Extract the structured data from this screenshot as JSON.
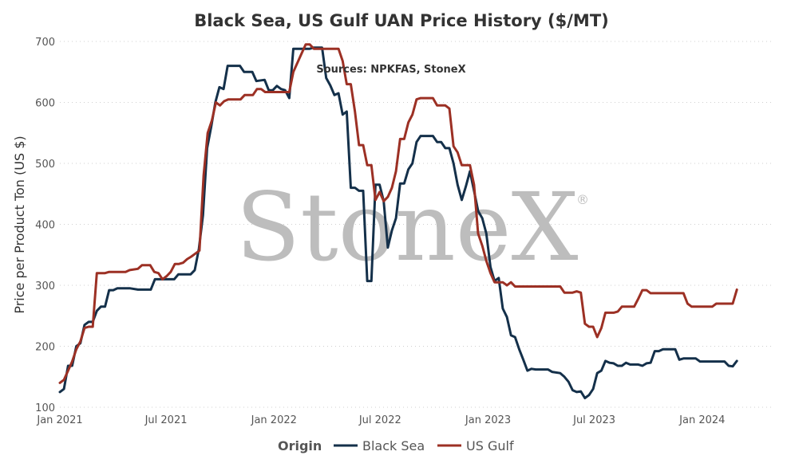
{
  "chart_data": {
    "type": "line",
    "title": "Black Sea, US Gulf UAN Price History ($/MT)",
    "subtitle": "Sources: NPKFAS, StoneX",
    "watermark": "StoneX",
    "watermark_symbol": "®",
    "xlabel": "",
    "ylabel": "Price per Product Ton (US $)",
    "ylim": [
      100,
      700
    ],
    "yticks": [
      100,
      200,
      300,
      400,
      500,
      600,
      700
    ],
    "xlim": [
      "2021-01-01",
      "2024-04-30"
    ],
    "xticks": [
      {
        "date": "2021-01-01",
        "label": "Jan 2021"
      },
      {
        "date": "2021-07-01",
        "label": "Jul 2021"
      },
      {
        "date": "2022-01-01",
        "label": "Jan 2022"
      },
      {
        "date": "2022-07-01",
        "label": "Jul 2022"
      },
      {
        "date": "2023-01-01",
        "label": "Jan 2023"
      },
      {
        "date": "2023-07-01",
        "label": "Jul 2023"
      },
      {
        "date": "2024-01-01",
        "label": "Jan 2024"
      }
    ],
    "grid": true,
    "legend": {
      "title": "Origin",
      "position": "bottom"
    },
    "series": [
      {
        "name": "Black Sea",
        "color": "#14304a",
        "points": [
          [
            "2021-01-01",
            125
          ],
          [
            "2021-01-08",
            130
          ],
          [
            "2021-01-15",
            168
          ],
          [
            "2021-01-22",
            168
          ],
          [
            "2021-01-29",
            200
          ],
          [
            "2021-02-05",
            205
          ],
          [
            "2021-02-12",
            235
          ],
          [
            "2021-02-19",
            240
          ],
          [
            "2021-02-26",
            240
          ],
          [
            "2021-03-05",
            258
          ],
          [
            "2021-03-12",
            265
          ],
          [
            "2021-03-19",
            265
          ],
          [
            "2021-03-26",
            292
          ],
          [
            "2021-04-02",
            292
          ],
          [
            "2021-04-09",
            295
          ],
          [
            "2021-05-01",
            295
          ],
          [
            "2021-05-14",
            293
          ],
          [
            "2021-06-05",
            293
          ],
          [
            "2021-06-12",
            310
          ],
          [
            "2021-07-15",
            310
          ],
          [
            "2021-07-22",
            318
          ],
          [
            "2021-08-12",
            318
          ],
          [
            "2021-08-19",
            325
          ],
          [
            "2021-08-26",
            360
          ],
          [
            "2021-09-02",
            415
          ],
          [
            "2021-09-09",
            525
          ],
          [
            "2021-09-16",
            560
          ],
          [
            "2021-09-23",
            600
          ],
          [
            "2021-09-30",
            625
          ],
          [
            "2021-10-07",
            622
          ],
          [
            "2021-10-14",
            660
          ],
          [
            "2021-11-04",
            660
          ],
          [
            "2021-11-11",
            650
          ],
          [
            "2021-11-25",
            650
          ],
          [
            "2021-12-02",
            635
          ],
          [
            "2021-12-16",
            637
          ],
          [
            "2021-12-23",
            620
          ],
          [
            "2021-12-30",
            620
          ],
          [
            "2022-01-06",
            627
          ],
          [
            "2022-01-13",
            622
          ],
          [
            "2022-01-20",
            620
          ],
          [
            "2022-01-27",
            607
          ],
          [
            "2022-02-03",
            688
          ],
          [
            "2022-03-03",
            688
          ],
          [
            "2022-03-10",
            690
          ],
          [
            "2022-03-24",
            690
          ],
          [
            "2022-03-31",
            640
          ],
          [
            "2022-04-07",
            628
          ],
          [
            "2022-04-14",
            612
          ],
          [
            "2022-04-21",
            615
          ],
          [
            "2022-04-28",
            580
          ],
          [
            "2022-05-05",
            585
          ],
          [
            "2022-05-12",
            460
          ],
          [
            "2022-05-19",
            460
          ],
          [
            "2022-05-26",
            455
          ],
          [
            "2022-06-02",
            455
          ],
          [
            "2022-06-09",
            307
          ],
          [
            "2022-06-16",
            307
          ],
          [
            "2022-06-23",
            465
          ],
          [
            "2022-06-30",
            465
          ],
          [
            "2022-07-07",
            438
          ],
          [
            "2022-07-14",
            362
          ],
          [
            "2022-07-21",
            390
          ],
          [
            "2022-07-28",
            410
          ],
          [
            "2022-08-04",
            467
          ],
          [
            "2022-08-11",
            467
          ],
          [
            "2022-08-18",
            490
          ],
          [
            "2022-08-25",
            500
          ],
          [
            "2022-09-01",
            535
          ],
          [
            "2022-09-08",
            545
          ],
          [
            "2022-09-29",
            545
          ],
          [
            "2022-10-06",
            535
          ],
          [
            "2022-10-13",
            535
          ],
          [
            "2022-10-20",
            525
          ],
          [
            "2022-10-27",
            525
          ],
          [
            "2022-11-03",
            500
          ],
          [
            "2022-11-10",
            465
          ],
          [
            "2022-11-17",
            440
          ],
          [
            "2022-11-24",
            462
          ],
          [
            "2022-12-01",
            487
          ],
          [
            "2022-12-08",
            455
          ],
          [
            "2022-12-15",
            422
          ],
          [
            "2022-12-22",
            410
          ],
          [
            "2022-12-29",
            385
          ],
          [
            "2023-01-05",
            330
          ],
          [
            "2023-01-12",
            307
          ],
          [
            "2023-01-19",
            312
          ],
          [
            "2023-01-26",
            262
          ],
          [
            "2023-02-02",
            248
          ],
          [
            "2023-02-09",
            218
          ],
          [
            "2023-02-16",
            215
          ],
          [
            "2023-02-23",
            195
          ],
          [
            "2023-03-02",
            178
          ],
          [
            "2023-03-09",
            160
          ],
          [
            "2023-03-16",
            163
          ],
          [
            "2023-03-23",
            162
          ],
          [
            "2023-04-13",
            162
          ],
          [
            "2023-04-20",
            158
          ],
          [
            "2023-05-04",
            156
          ],
          [
            "2023-05-11",
            150
          ],
          [
            "2023-05-18",
            142
          ],
          [
            "2023-05-25",
            128
          ],
          [
            "2023-06-01",
            125
          ],
          [
            "2023-06-08",
            126
          ],
          [
            "2023-06-15",
            115
          ],
          [
            "2023-06-22",
            120
          ],
          [
            "2023-06-29",
            130
          ],
          [
            "2023-07-06",
            156
          ],
          [
            "2023-07-13",
            160
          ],
          [
            "2023-07-20",
            176
          ],
          [
            "2023-07-27",
            173
          ],
          [
            "2023-08-03",
            172
          ],
          [
            "2023-08-10",
            168
          ],
          [
            "2023-08-17",
            168
          ],
          [
            "2023-08-24",
            173
          ],
          [
            "2023-08-31",
            170
          ],
          [
            "2023-09-07",
            170
          ],
          [
            "2023-09-14",
            170
          ],
          [
            "2023-09-21",
            168
          ],
          [
            "2023-09-28",
            172
          ],
          [
            "2023-10-05",
            173
          ],
          [
            "2023-10-12",
            192
          ],
          [
            "2023-10-19",
            192
          ],
          [
            "2023-10-26",
            195
          ],
          [
            "2023-11-16",
            195
          ],
          [
            "2023-11-23",
            178
          ],
          [
            "2023-11-30",
            180
          ],
          [
            "2023-12-21",
            180
          ],
          [
            "2023-12-28",
            175
          ],
          [
            "2024-02-08",
            175
          ],
          [
            "2024-02-15",
            168
          ],
          [
            "2024-02-22",
            167
          ],
          [
            "2024-02-29",
            176
          ]
        ]
      },
      {
        "name": "US Gulf",
        "color": "#9c3024",
        "points": [
          [
            "2021-01-01",
            140
          ],
          [
            "2021-01-08",
            145
          ],
          [
            "2021-01-15",
            160
          ],
          [
            "2021-01-22",
            175
          ],
          [
            "2021-01-29",
            195
          ],
          [
            "2021-02-05",
            208
          ],
          [
            "2021-02-12",
            230
          ],
          [
            "2021-02-19",
            232
          ],
          [
            "2021-02-26",
            232
          ],
          [
            "2021-03-05",
            320
          ],
          [
            "2021-03-12",
            320
          ],
          [
            "2021-03-19",
            320
          ],
          [
            "2021-03-26",
            322
          ],
          [
            "2021-04-23",
            322
          ],
          [
            "2021-04-30",
            325
          ],
          [
            "2021-05-14",
            327
          ],
          [
            "2021-05-21",
            333
          ],
          [
            "2021-06-04",
            333
          ],
          [
            "2021-06-11",
            322
          ],
          [
            "2021-06-18",
            320
          ],
          [
            "2021-06-25",
            310
          ],
          [
            "2021-07-02",
            315
          ],
          [
            "2021-07-09",
            322
          ],
          [
            "2021-07-16",
            335
          ],
          [
            "2021-07-23",
            335
          ],
          [
            "2021-07-30",
            337
          ],
          [
            "2021-08-06",
            343
          ],
          [
            "2021-08-13",
            347
          ],
          [
            "2021-08-20",
            352
          ],
          [
            "2021-08-27",
            357
          ],
          [
            "2021-09-03",
            480
          ],
          [
            "2021-09-10",
            550
          ],
          [
            "2021-09-17",
            570
          ],
          [
            "2021-09-24",
            600
          ],
          [
            "2021-10-01",
            595
          ],
          [
            "2021-10-08",
            602
          ],
          [
            "2021-10-15",
            605
          ],
          [
            "2021-11-05",
            605
          ],
          [
            "2021-11-12",
            612
          ],
          [
            "2021-11-26",
            612
          ],
          [
            "2021-12-03",
            622
          ],
          [
            "2021-12-10",
            622
          ],
          [
            "2021-12-17",
            617
          ],
          [
            "2022-01-27",
            617
          ],
          [
            "2022-02-03",
            650
          ],
          [
            "2022-02-17",
            680
          ],
          [
            "2022-02-24",
            695
          ],
          [
            "2022-03-03",
            695
          ],
          [
            "2022-03-10",
            688
          ],
          [
            "2022-04-21",
            688
          ],
          [
            "2022-04-28",
            668
          ],
          [
            "2022-05-05",
            630
          ],
          [
            "2022-05-12",
            630
          ],
          [
            "2022-05-19",
            585
          ],
          [
            "2022-05-26",
            530
          ],
          [
            "2022-06-02",
            530
          ],
          [
            "2022-06-09",
            497
          ],
          [
            "2022-06-16",
            497
          ],
          [
            "2022-06-23",
            440
          ],
          [
            "2022-06-30",
            453
          ],
          [
            "2022-07-07",
            438
          ],
          [
            "2022-07-14",
            445
          ],
          [
            "2022-07-21",
            460
          ],
          [
            "2022-07-28",
            487
          ],
          [
            "2022-08-04",
            540
          ],
          [
            "2022-08-11",
            540
          ],
          [
            "2022-08-18",
            567
          ],
          [
            "2022-08-25",
            580
          ],
          [
            "2022-09-01",
            605
          ],
          [
            "2022-09-08",
            607
          ],
          [
            "2022-09-29",
            607
          ],
          [
            "2022-10-06",
            595
          ],
          [
            "2022-10-20",
            595
          ],
          [
            "2022-10-27",
            590
          ],
          [
            "2022-11-03",
            528
          ],
          [
            "2022-11-10",
            518
          ],
          [
            "2022-11-17",
            497
          ],
          [
            "2022-11-24",
            497
          ],
          [
            "2022-12-01",
            497
          ],
          [
            "2022-12-08",
            465
          ],
          [
            "2022-12-15",
            385
          ],
          [
            "2022-12-22",
            365
          ],
          [
            "2022-12-29",
            340
          ],
          [
            "2023-01-05",
            320
          ],
          [
            "2023-01-12",
            305
          ],
          [
            "2023-01-19",
            305
          ],
          [
            "2023-01-26",
            305
          ],
          [
            "2023-02-02",
            300
          ],
          [
            "2023-02-09",
            305
          ],
          [
            "2023-02-16",
            298
          ],
          [
            "2023-05-04",
            298
          ],
          [
            "2023-05-11",
            288
          ],
          [
            "2023-05-25",
            288
          ],
          [
            "2023-06-01",
            290
          ],
          [
            "2023-06-08",
            288
          ],
          [
            "2023-06-15",
            237
          ],
          [
            "2023-06-22",
            232
          ],
          [
            "2023-06-29",
            232
          ],
          [
            "2023-07-06",
            215
          ],
          [
            "2023-07-13",
            230
          ],
          [
            "2023-07-20",
            255
          ],
          [
            "2023-08-03",
            255
          ],
          [
            "2023-08-10",
            257
          ],
          [
            "2023-08-17",
            265
          ],
          [
            "2023-09-07",
            265
          ],
          [
            "2023-09-14",
            278
          ],
          [
            "2023-09-21",
            292
          ],
          [
            "2023-09-28",
            292
          ],
          [
            "2023-10-05",
            287
          ],
          [
            "2023-11-30",
            287
          ],
          [
            "2023-12-07",
            270
          ],
          [
            "2023-12-14",
            265
          ],
          [
            "2024-01-18",
            265
          ],
          [
            "2024-01-25",
            270
          ],
          [
            "2024-02-22",
            270
          ],
          [
            "2024-02-29",
            293
          ]
        ]
      }
    ]
  }
}
